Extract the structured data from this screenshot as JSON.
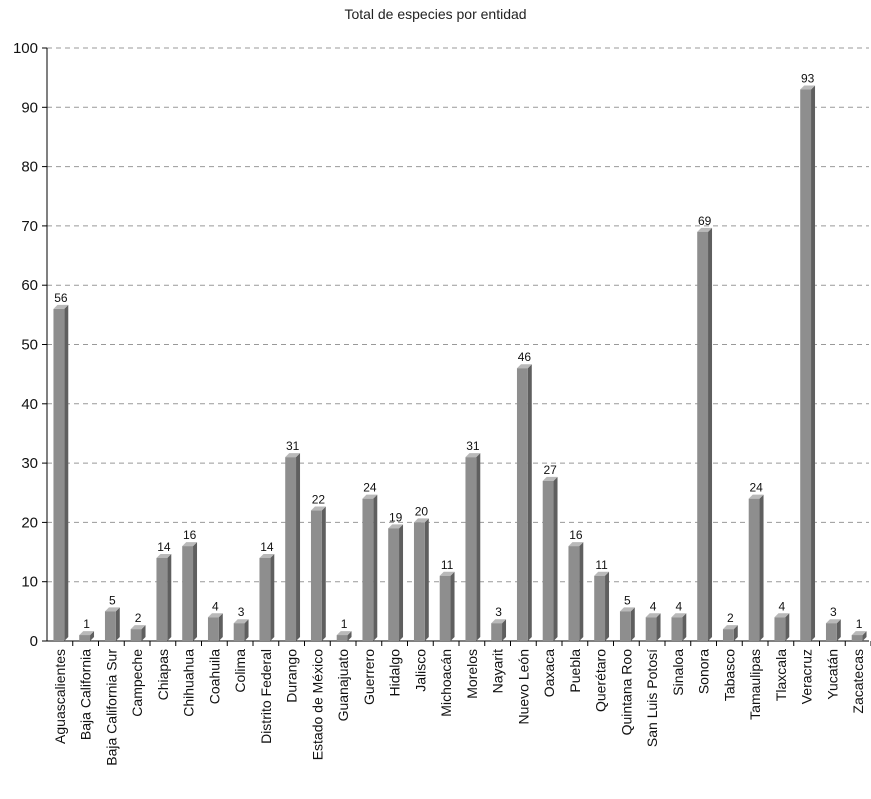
{
  "chart_data": {
    "type": "bar",
    "title": "Total de especies por entidad",
    "xlabel": "",
    "ylabel": "",
    "ylim": [
      0,
      100
    ],
    "yticks": [
      0,
      10,
      20,
      30,
      40,
      50,
      60,
      70,
      80,
      90,
      100
    ],
    "grid": true,
    "colors": {
      "bar_front": "#8e8e8e",
      "bar_side": "#5f5f5f",
      "bar_top": "#b9b9b9",
      "grid": "#999999",
      "axis": "#000000"
    },
    "categories": [
      "Aguascalientes",
      "Baja California",
      "Baja California Sur",
      "Campeche",
      "Chiapas",
      "Chihuahua",
      "Coahuila",
      "Colima",
      "Distrito Federal",
      "Durango",
      "Estado de México",
      "Guanajuato",
      "Guerrero",
      "Hidalgo",
      "Jalisco",
      "Michoacán",
      "Morelos",
      "Nayarit",
      "Nuevo León",
      "Oaxaca",
      "Puebla",
      "Querétaro",
      "Quintana Roo",
      "San Luis Potosí",
      "Sinaloa",
      "Sonora",
      "Tabasco",
      "Tamaulipas",
      "Tlaxcala",
      "Veracruz",
      "Yucatán",
      "Zacatecas"
    ],
    "values": [
      56,
      1,
      5,
      2,
      14,
      16,
      4,
      3,
      14,
      31,
      22,
      1,
      24,
      19,
      20,
      11,
      31,
      3,
      46,
      27,
      16,
      11,
      5,
      4,
      4,
      69,
      2,
      24,
      4,
      93,
      3,
      1
    ]
  }
}
